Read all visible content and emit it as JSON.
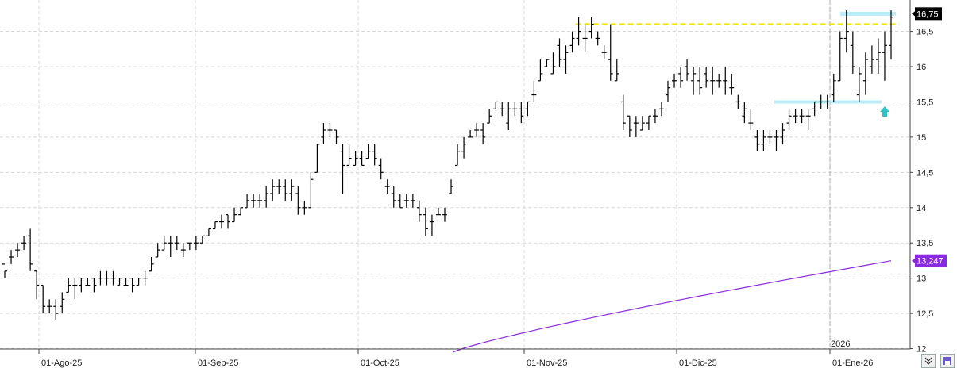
{
  "chart_data": {
    "type": "ohlc",
    "ylim": [
      11.95,
      16.9
    ],
    "y_ticks": [
      "12",
      "12,5",
      "13",
      "13,5",
      "14",
      "14,5",
      "15",
      "15,5",
      "16",
      "16,5"
    ],
    "x_ticks": [
      "01-Ago-25",
      "01-Sep-25",
      "01-Oct-25",
      "01-Nov-25",
      "01-Dic-25",
      "01-Ene-26"
    ],
    "year_marker": "2026",
    "last_price_label": "16,75",
    "ma_value_label": "13,247",
    "grid": true,
    "bars": [
      [
        13.2,
        13.1,
        13.0,
        13.1
      ],
      [
        13.3,
        13.4,
        13.2,
        13.3
      ],
      [
        13.4,
        13.5,
        13.3,
        13.4
      ],
      [
        13.5,
        13.6,
        13.4,
        13.5
      ],
      [
        13.6,
        13.7,
        13.1,
        13.2
      ],
      [
        13.1,
        13.1,
        12.7,
        12.9
      ],
      [
        12.9,
        12.9,
        12.5,
        12.6
      ],
      [
        12.6,
        12.7,
        12.5,
        12.6
      ],
      [
        12.6,
        12.7,
        12.4,
        12.5
      ],
      [
        12.6,
        12.8,
        12.5,
        12.7
      ],
      [
        12.8,
        13.0,
        12.8,
        12.9
      ],
      [
        12.9,
        13.0,
        12.7,
        12.9
      ],
      [
        12.9,
        13.0,
        12.8,
        13.0
      ],
      [
        12.9,
        13.0,
        12.9,
        12.9
      ],
      [
        13.0,
        13.0,
        12.8,
        12.9
      ],
      [
        13.0,
        13.1,
        12.9,
        13.0
      ],
      [
        13.0,
        13.1,
        12.9,
        13.0
      ],
      [
        13.0,
        13.1,
        12.9,
        13.0
      ],
      [
        12.9,
        13.0,
        12.9,
        13.0
      ],
      [
        12.9,
        13.0,
        12.9,
        12.9
      ],
      [
        13.0,
        13.0,
        12.8,
        12.9
      ],
      [
        12.9,
        13.0,
        12.9,
        13.0
      ],
      [
        13.0,
        13.1,
        12.9,
        13.0
      ],
      [
        13.1,
        13.3,
        13.1,
        13.2
      ],
      [
        13.3,
        13.5,
        13.3,
        13.4
      ],
      [
        13.4,
        13.6,
        13.4,
        13.5
      ],
      [
        13.5,
        13.6,
        13.3,
        13.5
      ],
      [
        13.5,
        13.6,
        13.4,
        13.5
      ],
      [
        13.4,
        13.5,
        13.3,
        13.4
      ],
      [
        13.5,
        13.5,
        13.4,
        13.5
      ],
      [
        13.5,
        13.6,
        13.4,
        13.5
      ],
      [
        13.5,
        13.6,
        13.5,
        13.6
      ],
      [
        13.6,
        13.7,
        13.6,
        13.7
      ],
      [
        13.7,
        13.8,
        13.7,
        13.8
      ],
      [
        13.8,
        13.9,
        13.7,
        13.8
      ],
      [
        13.9,
        13.9,
        13.7,
        13.8
      ],
      [
        13.8,
        14.0,
        13.8,
        13.9
      ],
      [
        13.9,
        14.0,
        13.9,
        14.0
      ],
      [
        14.0,
        14.2,
        14.0,
        14.1
      ],
      [
        14.1,
        14.2,
        14.0,
        14.1
      ],
      [
        14.1,
        14.2,
        14.0,
        14.1
      ],
      [
        14.1,
        14.3,
        14.0,
        14.2
      ],
      [
        14.2,
        14.4,
        14.1,
        14.3
      ],
      [
        14.3,
        14.4,
        14.2,
        14.3
      ],
      [
        14.3,
        14.4,
        14.1,
        14.2
      ],
      [
        14.2,
        14.4,
        14.1,
        14.3
      ],
      [
        14.2,
        14.3,
        13.9,
        14.0
      ],
      [
        14.0,
        14.1,
        13.9,
        14.0
      ],
      [
        14.0,
        14.5,
        14.0,
        14.4
      ],
      [
        14.5,
        14.9,
        14.5,
        14.9
      ],
      [
        15.0,
        15.2,
        14.9,
        15.1
      ],
      [
        15.1,
        15.2,
        15.0,
        15.1
      ],
      [
        15.1,
        15.1,
        14.9,
        15.0
      ],
      [
        14.8,
        14.9,
        14.2,
        14.6
      ],
      [
        14.6,
        14.9,
        14.6,
        14.7
      ],
      [
        14.6,
        14.8,
        14.6,
        14.7
      ],
      [
        14.7,
        14.8,
        14.6,
        14.6
      ],
      [
        14.7,
        14.9,
        14.7,
        14.8
      ],
      [
        14.8,
        14.9,
        14.6,
        14.7
      ],
      [
        14.6,
        14.7,
        14.4,
        14.5
      ],
      [
        14.3,
        14.4,
        14.2,
        14.3
      ],
      [
        14.2,
        14.3,
        14.0,
        14.1
      ],
      [
        14.1,
        14.2,
        14.0,
        14.0
      ],
      [
        14.1,
        14.2,
        14.0,
        14.1
      ],
      [
        14.1,
        14.2,
        14.0,
        14.1
      ],
      [
        14.0,
        14.1,
        13.8,
        13.9
      ],
      [
        13.9,
        14.0,
        13.6,
        13.7
      ],
      [
        13.8,
        13.9,
        13.6,
        13.8
      ],
      [
        13.9,
        14.0,
        13.9,
        13.9
      ],
      [
        13.9,
        14.0,
        13.8,
        13.9
      ],
      [
        14.2,
        14.4,
        14.2,
        14.3
      ],
      [
        14.6,
        14.9,
        14.6,
        14.8
      ],
      [
        14.8,
        15.0,
        14.7,
        14.9
      ],
      [
        15.0,
        15.1,
        15.0,
        15.0
      ],
      [
        15.1,
        15.2,
        15.0,
        15.1
      ],
      [
        15.1,
        15.2,
        14.9,
        15.0
      ],
      [
        15.2,
        15.4,
        15.2,
        15.3
      ],
      [
        15.4,
        15.5,
        15.4,
        15.5
      ],
      [
        15.4,
        15.5,
        15.3,
        15.4
      ],
      [
        15.2,
        15.5,
        15.1,
        15.4
      ],
      [
        15.4,
        15.5,
        15.3,
        15.4
      ],
      [
        15.4,
        15.5,
        15.2,
        15.3
      ],
      [
        15.4,
        15.5,
        15.3,
        15.5
      ],
      [
        15.6,
        15.8,
        15.5,
        15.6
      ],
      [
        15.8,
        16.1,
        15.8,
        15.9
      ],
      [
        16.0,
        16.1,
        16.0,
        16.1
      ],
      [
        15.9,
        16.2,
        15.9,
        16.0
      ],
      [
        16.3,
        16.4,
        16.0,
        16.1
      ],
      [
        16.1,
        16.3,
        15.9,
        16.2
      ],
      [
        16.3,
        16.5,
        16.2,
        16.4
      ],
      [
        16.4,
        16.7,
        16.3,
        16.5
      ],
      [
        16.4,
        16.6,
        16.2,
        16.4
      ],
      [
        16.5,
        16.7,
        16.4,
        16.6
      ],
      [
        16.4,
        16.5,
        16.3,
        16.4
      ],
      [
        16.2,
        16.3,
        16.1,
        16.2
      ],
      [
        16.1,
        16.6,
        15.8,
        15.9
      ],
      [
        15.8,
        16.1,
        15.8,
        15.9
      ],
      [
        15.5,
        15.6,
        15.1,
        15.2
      ],
      [
        15.3,
        15.3,
        15.0,
        15.1
      ],
      [
        15.2,
        15.3,
        15.0,
        15.2
      ],
      [
        15.1,
        15.3,
        15.1,
        15.2
      ],
      [
        15.2,
        15.3,
        15.1,
        15.3
      ],
      [
        15.3,
        15.4,
        15.2,
        15.3
      ],
      [
        15.4,
        15.5,
        15.3,
        15.4
      ],
      [
        15.6,
        15.8,
        15.5,
        15.7
      ],
      [
        15.8,
        15.9,
        15.7,
        15.8
      ],
      [
        15.9,
        16.0,
        15.7,
        15.8
      ],
      [
        16.0,
        16.1,
        15.8,
        15.9
      ],
      [
        15.8,
        16.0,
        15.6,
        15.9
      ],
      [
        15.8,
        16.0,
        15.6,
        15.7
      ],
      [
        15.9,
        16.0,
        15.7,
        15.8
      ],
      [
        15.8,
        16.0,
        15.6,
        15.8
      ],
      [
        15.8,
        15.9,
        15.7,
        15.8
      ],
      [
        15.8,
        16.0,
        15.6,
        15.8
      ],
      [
        15.7,
        15.9,
        15.6,
        15.7
      ],
      [
        15.5,
        15.6,
        15.4,
        15.5
      ],
      [
        15.3,
        15.5,
        15.2,
        15.4
      ],
      [
        15.2,
        15.4,
        15.1,
        15.2
      ],
      [
        15.0,
        15.1,
        14.8,
        14.9
      ],
      [
        14.9,
        15.1,
        14.8,
        15.0
      ],
      [
        15.0,
        15.1,
        14.9,
        15.0
      ],
      [
        15.0,
        15.1,
        14.8,
        15.0
      ],
      [
        15.0,
        15.2,
        14.9,
        15.1
      ],
      [
        15.2,
        15.4,
        15.1,
        15.3
      ],
      [
        15.3,
        15.4,
        15.2,
        15.3
      ],
      [
        15.3,
        15.4,
        15.2,
        15.3
      ],
      [
        15.3,
        15.4,
        15.1,
        15.3
      ],
      [
        15.4,
        15.5,
        15.3,
        15.5
      ],
      [
        15.5,
        15.6,
        15.4,
        15.5
      ],
      [
        15.5,
        15.6,
        15.4,
        15.5
      ],
      [
        15.6,
        15.9,
        15.5,
        15.8
      ],
      [
        15.8,
        16.5,
        15.8,
        16.4
      ],
      [
        16.4,
        16.8,
        16.2,
        16.5
      ],
      [
        16.3,
        16.5,
        15.9,
        16.0
      ],
      [
        15.6,
        16.0,
        15.5,
        15.9
      ],
      [
        15.8,
        16.2,
        15.6,
        16.1
      ],
      [
        16.0,
        16.3,
        15.9,
        16.1
      ],
      [
        16.1,
        16.4,
        15.9,
        16.2
      ],
      [
        16.2,
        16.5,
        15.8,
        16.3
      ],
      [
        16.3,
        16.8,
        16.1,
        16.7
      ]
    ],
    "ma_line": {
      "name": "",
      "x_start_bar": 66,
      "start_value": 11.95,
      "end_value": 13.247
    },
    "resistance_line": {
      "value": 16.6,
      "from_bar": 90,
      "color": "#f2e600"
    },
    "support_band": {
      "value": 15.5,
      "from_bar": 120
    },
    "top_band": {
      "value": 16.75,
      "from_bar": 133
    },
    "colors": {
      "bars": "#000000",
      "ma": "#8a2be2",
      "price_label_bg": "#000000",
      "ma_label_bg": "#8a2be2",
      "arrow": "#2ec4c4",
      "band": "#b8ecf7"
    }
  },
  "toolbar": {
    "icons": [
      "double-chevron-down-icon",
      "maximize-icon",
      "save-icon"
    ]
  }
}
